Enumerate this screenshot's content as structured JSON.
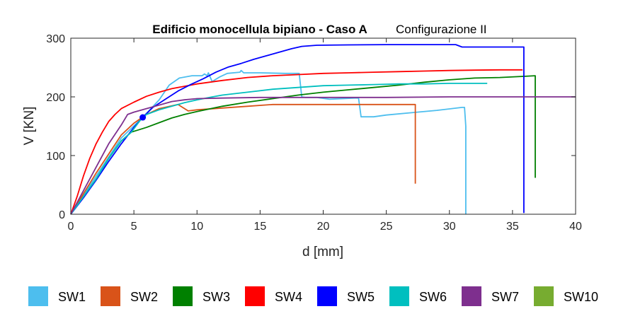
{
  "chart_data": {
    "type": "line",
    "title": "Edificio monocellula bipiano - Caso A",
    "subtitle": "Configurazione II",
    "xlabel": "d [mm]",
    "ylabel": "V [KN]",
    "xlim": [
      0,
      40
    ],
    "ylim": [
      0,
      300
    ],
    "xticks": [
      0,
      5,
      10,
      15,
      20,
      25,
      30,
      35,
      40
    ],
    "yticks": [
      0,
      100,
      200,
      300
    ],
    "grid": false,
    "legend_position": "bottom",
    "marker": {
      "x": 5.7,
      "y": 165,
      "color": "#0000ff"
    },
    "series": [
      {
        "name": "SW1",
        "color": "#4dbeee",
        "points": [
          [
            0,
            0
          ],
          [
            2,
            65
          ],
          [
            4,
            130
          ],
          [
            5.7,
            165
          ],
          [
            7,
            195
          ],
          [
            7.8,
            220
          ],
          [
            8.6,
            232
          ],
          [
            9.6,
            236
          ],
          [
            10.4,
            236
          ],
          [
            10.6,
            239
          ],
          [
            10.8,
            236
          ],
          [
            10.9,
            241
          ],
          [
            11.2,
            226
          ],
          [
            11.8,
            234
          ],
          [
            12.4,
            240
          ],
          [
            13.4,
            242
          ],
          [
            13.5,
            245
          ],
          [
            13.7,
            241
          ],
          [
            15,
            241
          ],
          [
            17,
            240
          ],
          [
            18.1,
            240
          ],
          [
            18.3,
            200
          ],
          [
            18.6,
            199
          ],
          [
            19.5,
            199
          ],
          [
            20.5,
            196
          ],
          [
            22.5,
            198
          ],
          [
            22.8,
            198
          ],
          [
            23,
            166
          ],
          [
            24,
            166
          ],
          [
            25,
            169
          ],
          [
            27,
            173
          ],
          [
            29,
            177
          ],
          [
            31,
            182
          ],
          [
            31.2,
            182
          ],
          [
            31.3,
            150
          ],
          [
            31.3,
            0
          ]
        ]
      },
      {
        "name": "SW2",
        "color": "#d95319",
        "points": [
          [
            0,
            0
          ],
          [
            2,
            70
          ],
          [
            4,
            135
          ],
          [
            5,
            155
          ],
          [
            6,
            170
          ],
          [
            7,
            180
          ],
          [
            8.5,
            187
          ],
          [
            9.3,
            176
          ],
          [
            10,
            178
          ],
          [
            12,
            181
          ],
          [
            14,
            184
          ],
          [
            16,
            187
          ],
          [
            18,
            187
          ],
          [
            20,
            187
          ],
          [
            22,
            187
          ],
          [
            24,
            187
          ],
          [
            26,
            187
          ],
          [
            27.3,
            187
          ],
          [
            27.3,
            52
          ]
        ]
      },
      {
        "name": "SW3",
        "color": "#008000",
        "points": [
          [
            0,
            0
          ],
          [
            1,
            30
          ],
          [
            2,
            60
          ],
          [
            3,
            95
          ],
          [
            4,
            125
          ],
          [
            4.8,
            140
          ],
          [
            6,
            148
          ],
          [
            7,
            156
          ],
          [
            8,
            164
          ],
          [
            9,
            170
          ],
          [
            10,
            175
          ],
          [
            12,
            184
          ],
          [
            14,
            191
          ],
          [
            16,
            197
          ],
          [
            18,
            203
          ],
          [
            20,
            208
          ],
          [
            22,
            212
          ],
          [
            24,
            216
          ],
          [
            26,
            220
          ],
          [
            28,
            225
          ],
          [
            30,
            229
          ],
          [
            32,
            232
          ],
          [
            34,
            233
          ],
          [
            36,
            235
          ],
          [
            36.8,
            236
          ],
          [
            36.8,
            62
          ]
        ]
      },
      {
        "name": "SW4",
        "color": "#ff0000",
        "points": [
          [
            0,
            0
          ],
          [
            0.5,
            30
          ],
          [
            1,
            65
          ],
          [
            1.5,
            95
          ],
          [
            2,
            120
          ],
          [
            2.5,
            140
          ],
          [
            3,
            158
          ],
          [
            3.5,
            170
          ],
          [
            4,
            180
          ],
          [
            5,
            191
          ],
          [
            6,
            201
          ],
          [
            7,
            208
          ],
          [
            8,
            214
          ],
          [
            10,
            222
          ],
          [
            12,
            228
          ],
          [
            14,
            233
          ],
          [
            16,
            236
          ],
          [
            18,
            238
          ],
          [
            20,
            240
          ],
          [
            22,
            241
          ],
          [
            24,
            242
          ],
          [
            26,
            243
          ],
          [
            28,
            244
          ],
          [
            30,
            245
          ],
          [
            32,
            245.5
          ],
          [
            34,
            246
          ],
          [
            35.8,
            246
          ]
        ]
      },
      {
        "name": "SW5",
        "color": "#0000ff",
        "points": [
          [
            0,
            0
          ],
          [
            1,
            28
          ],
          [
            2,
            58
          ],
          [
            3,
            90
          ],
          [
            4,
            120
          ],
          [
            5,
            148
          ],
          [
            5.7,
            165
          ],
          [
            6.5,
            182
          ],
          [
            7.5,
            196
          ],
          [
            8.5,
            210
          ],
          [
            9.5,
            221
          ],
          [
            10.5,
            231
          ],
          [
            11.5,
            242
          ],
          [
            12.5,
            251
          ],
          [
            13.5,
            257
          ],
          [
            14.5,
            264
          ],
          [
            15.5,
            270
          ],
          [
            16.5,
            276
          ],
          [
            17.5,
            282
          ],
          [
            18.3,
            286
          ],
          [
            19.5,
            288
          ],
          [
            22,
            288.5
          ],
          [
            25,
            289
          ],
          [
            28,
            289
          ],
          [
            30.5,
            289
          ],
          [
            31,
            285
          ],
          [
            32,
            285
          ],
          [
            34,
            285
          ],
          [
            35.9,
            285
          ],
          [
            35.9,
            2
          ]
        ]
      },
      {
        "name": "SW6",
        "color": "#00bfbf",
        "points": [
          [
            0,
            0
          ],
          [
            1,
            30
          ],
          [
            2,
            60
          ],
          [
            3,
            95
          ],
          [
            4,
            125
          ],
          [
            4.8,
            140
          ],
          [
            5.5,
            160
          ],
          [
            6,
            170
          ],
          [
            7,
            178
          ],
          [
            8,
            184
          ],
          [
            9,
            190
          ],
          [
            10,
            195
          ],
          [
            11,
            199
          ],
          [
            12,
            203
          ],
          [
            14,
            208
          ],
          [
            16,
            213
          ],
          [
            18,
            216
          ],
          [
            20,
            219
          ],
          [
            22,
            220
          ],
          [
            24,
            221
          ],
          [
            26,
            222
          ],
          [
            28,
            222
          ],
          [
            30,
            223
          ],
          [
            32,
            223
          ],
          [
            33,
            223
          ]
        ]
      },
      {
        "name": "SW7",
        "color": "#7e2f8e",
        "points": [
          [
            0,
            0
          ],
          [
            1,
            40
          ],
          [
            2,
            80
          ],
          [
            3,
            120
          ],
          [
            4,
            152
          ],
          [
            4.5,
            170
          ],
          [
            5,
            174
          ],
          [
            6,
            180
          ],
          [
            7,
            186
          ],
          [
            8,
            192
          ],
          [
            9,
            195
          ],
          [
            10,
            197
          ],
          [
            12,
            198
          ],
          [
            15,
            199
          ],
          [
            20,
            199
          ],
          [
            25,
            199
          ],
          [
            30,
            200
          ],
          [
            35,
            200
          ],
          [
            40,
            200
          ]
        ]
      },
      {
        "name": "SW10",
        "color": "#77ac30",
        "points": []
      }
    ]
  }
}
